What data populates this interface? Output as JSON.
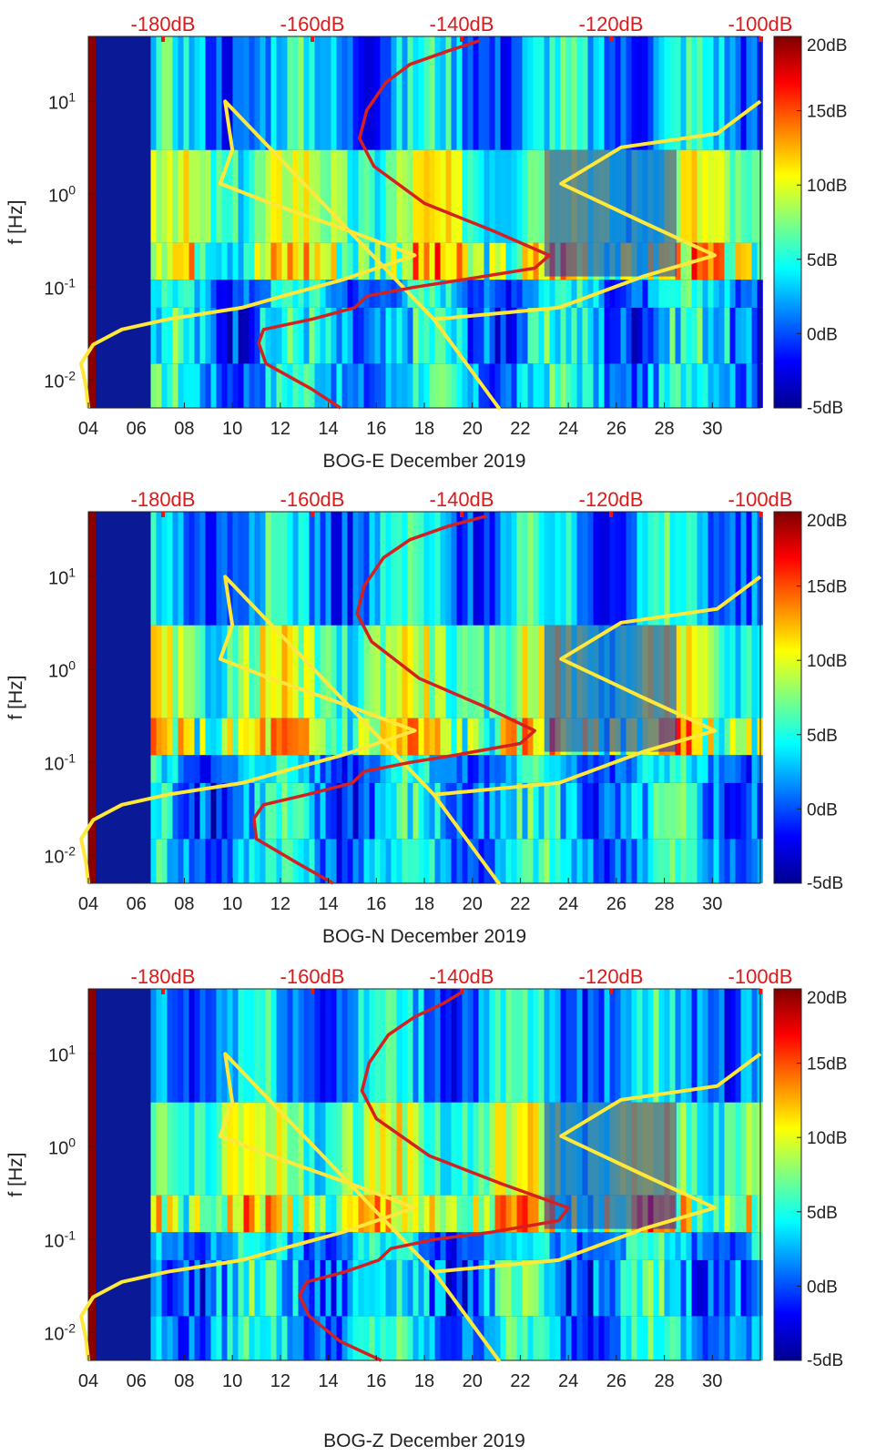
{
  "colors": {
    "background": "#ffffff",
    "spectrogram_blue": "#0a1a96",
    "nlnm_line": "#ffe83a",
    "psd_line": "#d42020",
    "top_axis_text": "#e01818",
    "axis_text": "#222222"
  },
  "chart_data": [
    {
      "type": "heatmap",
      "title": "",
      "xlabel": "BOG-E December 2019",
      "ylabel": "f [Hz]",
      "x_ticks": [
        "04",
        "06",
        "08",
        "10",
        "12",
        "14",
        "16",
        "18",
        "20",
        "22",
        "24",
        "26",
        "28",
        "30"
      ],
      "y_ticks": [
        "10-2",
        "10-1",
        "100",
        "101"
      ],
      "top_ticks": [
        "-180dB",
        "-160dB",
        "-140dB",
        "-120dB",
        "-100dB"
      ],
      "colorbar": {
        "ticks": [
          "20dB",
          "15dB",
          "10dB",
          "5dB",
          "0dB",
          "-5dB"
        ],
        "range": [
          -5,
          20
        ],
        "colormap": "jet"
      },
      "xlim": [
        4,
        32
      ],
      "ylim": [
        0.005,
        50
      ],
      "y_scale": "log",
      "top_xlim": [
        -190,
        -100
      ],
      "data_start_day": 6.6,
      "series": [
        {
          "color": "yellow",
          "points": [
            [
              4.0,
              0.005
            ],
            [
              3.9,
              0.0085
            ],
            [
              3.7,
              0.015
            ],
            [
              4.2,
              0.024
            ],
            [
              5.4,
              0.035
            ],
            [
              7.3,
              0.045
            ],
            [
              10.4,
              0.06
            ],
            [
              12.1,
              0.08
            ],
            [
              14.6,
              0.12
            ],
            [
              17.6,
              0.22
            ],
            [
              14.9,
              0.4
            ],
            [
              11.6,
              0.8
            ],
            [
              9.5,
              1.3
            ],
            [
              10.0,
              3
            ],
            [
              9.7,
              10
            ],
            [
              18.4,
              0.045
            ],
            [
              21.1,
              0.005
            ],
            [
              18.4,
              0.045
            ],
            [
              23.6,
              0.06
            ],
            [
              27.1,
              0.13
            ],
            [
              30.1,
              0.22
            ],
            [
              27.1,
              0.5
            ],
            [
              23.7,
              1.3
            ],
            [
              26.2,
              3.2
            ],
            [
              30.2,
              4.5
            ],
            [
              32.0,
              10
            ]
          ]
        },
        {
          "color": "red",
          "points": [
            [
              14.5,
              0.005
            ],
            [
              13.3,
              0.008
            ],
            [
              11.4,
              0.015
            ],
            [
              11.1,
              0.025
            ],
            [
              11.3,
              0.035
            ],
            [
              13.3,
              0.045
            ],
            [
              15.1,
              0.06
            ],
            [
              15.6,
              0.08
            ],
            [
              17.6,
              0.1
            ],
            [
              19.6,
              0.12
            ],
            [
              22.6,
              0.16
            ],
            [
              23.2,
              0.22
            ],
            [
              20.9,
              0.4
            ],
            [
              18.0,
              0.8
            ],
            [
              15.9,
              2
            ],
            [
              15.3,
              4
            ],
            [
              15.6,
              8
            ],
            [
              16.4,
              16
            ],
            [
              17.4,
              25
            ],
            [
              19.0,
              35
            ],
            [
              20.3,
              45
            ]
          ]
        }
      ]
    },
    {
      "type": "heatmap",
      "title": "",
      "xlabel": "BOG-N December 2019",
      "ylabel": "f [Hz]",
      "x_ticks": [
        "04",
        "06",
        "08",
        "10",
        "12",
        "14",
        "16",
        "18",
        "20",
        "22",
        "24",
        "26",
        "28",
        "30"
      ],
      "y_ticks": [
        "10-2",
        "10-1",
        "100",
        "101"
      ],
      "top_ticks": [
        "-180dB",
        "-160dB",
        "-140dB",
        "-120dB",
        "-100dB"
      ],
      "colorbar": {
        "ticks": [
          "20dB",
          "15dB",
          "10dB",
          "5dB",
          "0dB",
          "-5dB"
        ],
        "range": [
          -5,
          20
        ],
        "colormap": "jet"
      },
      "xlim": [
        4,
        32
      ],
      "ylim": [
        0.005,
        50
      ],
      "y_scale": "log",
      "top_xlim": [
        -190,
        -100
      ],
      "data_start_day": 6.6,
      "series": [
        {
          "color": "yellow",
          "points": [
            [
              4.0,
              0.005
            ],
            [
              3.9,
              0.0085
            ],
            [
              3.7,
              0.015
            ],
            [
              4.2,
              0.024
            ],
            [
              5.4,
              0.035
            ],
            [
              7.3,
              0.045
            ],
            [
              10.4,
              0.06
            ],
            [
              12.1,
              0.08
            ],
            [
              14.6,
              0.12
            ],
            [
              17.6,
              0.22
            ],
            [
              14.9,
              0.4
            ],
            [
              11.6,
              0.8
            ],
            [
              9.5,
              1.3
            ],
            [
              10.0,
              3
            ],
            [
              9.7,
              10
            ],
            [
              18.4,
              0.045
            ],
            [
              21.1,
              0.005
            ],
            [
              18.4,
              0.045
            ],
            [
              23.6,
              0.06
            ],
            [
              27.1,
              0.13
            ],
            [
              30.1,
              0.22
            ],
            [
              27.1,
              0.5
            ],
            [
              23.7,
              1.3
            ],
            [
              26.2,
              3.2
            ],
            [
              30.2,
              4.5
            ],
            [
              32.0,
              10
            ]
          ]
        },
        {
          "color": "red",
          "points": [
            [
              14.2,
              0.005
            ],
            [
              12.8,
              0.008
            ],
            [
              11.0,
              0.015
            ],
            [
              10.9,
              0.025
            ],
            [
              11.3,
              0.035
            ],
            [
              13.1,
              0.045
            ],
            [
              15.0,
              0.06
            ],
            [
              15.5,
              0.08
            ],
            [
              17.4,
              0.1
            ],
            [
              19.3,
              0.12
            ],
            [
              22.0,
              0.16
            ],
            [
              22.6,
              0.22
            ],
            [
              20.5,
              0.4
            ],
            [
              17.8,
              0.8
            ],
            [
              15.8,
              2
            ],
            [
              15.2,
              4
            ],
            [
              15.5,
              8
            ],
            [
              16.3,
              16
            ],
            [
              17.4,
              25
            ],
            [
              19.0,
              35
            ],
            [
              20.6,
              45
            ]
          ]
        }
      ]
    },
    {
      "type": "heatmap",
      "title": "",
      "xlabel": "BOG-Z December 2019",
      "ylabel": "f [Hz]",
      "x_ticks": [
        "04",
        "06",
        "08",
        "10",
        "12",
        "14",
        "16",
        "18",
        "20",
        "22",
        "24",
        "26",
        "28",
        "30"
      ],
      "y_ticks": [
        "10-2",
        "10-1",
        "100",
        "101"
      ],
      "top_ticks": [
        "-180dB",
        "-160dB",
        "-140dB",
        "-120dB",
        "-100dB"
      ],
      "colorbar": {
        "ticks": [
          "20dB",
          "15dB",
          "10dB",
          "5dB",
          "0dB",
          "-5dB"
        ],
        "range": [
          -5,
          20
        ],
        "colormap": "jet"
      },
      "xlim": [
        4,
        32
      ],
      "ylim": [
        0.005,
        50
      ],
      "y_scale": "log",
      "top_xlim": [
        -190,
        -100
      ],
      "data_start_day": 6.6,
      "series": [
        {
          "color": "yellow",
          "points": [
            [
              4.0,
              0.005
            ],
            [
              3.9,
              0.0085
            ],
            [
              3.7,
              0.015
            ],
            [
              4.2,
              0.024
            ],
            [
              5.4,
              0.035
            ],
            [
              7.3,
              0.045
            ],
            [
              10.4,
              0.06
            ],
            [
              12.1,
              0.08
            ],
            [
              14.6,
              0.12
            ],
            [
              17.6,
              0.22
            ],
            [
              14.9,
              0.4
            ],
            [
              11.6,
              0.8
            ],
            [
              9.5,
              1.3
            ],
            [
              10.0,
              3
            ],
            [
              9.7,
              10
            ],
            [
              18.4,
              0.045
            ],
            [
              21.1,
              0.005
            ],
            [
              18.4,
              0.045
            ],
            [
              23.6,
              0.06
            ],
            [
              27.1,
              0.13
            ],
            [
              30.1,
              0.22
            ],
            [
              27.1,
              0.5
            ],
            [
              23.7,
              1.3
            ],
            [
              26.2,
              3.2
            ],
            [
              30.2,
              4.5
            ],
            [
              32.0,
              10
            ]
          ]
        },
        {
          "color": "red",
          "points": [
            [
              16.2,
              0.005
            ],
            [
              14.5,
              0.008
            ],
            [
              13.2,
              0.015
            ],
            [
              12.8,
              0.025
            ],
            [
              13.1,
              0.035
            ],
            [
              14.7,
              0.045
            ],
            [
              16.1,
              0.06
            ],
            [
              16.6,
              0.08
            ],
            [
              18.4,
              0.1
            ],
            [
              20.8,
              0.12
            ],
            [
              23.6,
              0.16
            ],
            [
              24.0,
              0.22
            ],
            [
              21.2,
              0.4
            ],
            [
              18.2,
              0.8
            ],
            [
              16.0,
              2
            ],
            [
              15.4,
              4
            ],
            [
              15.7,
              8
            ],
            [
              16.5,
              16
            ],
            [
              17.6,
              25
            ],
            [
              18.8,
              35
            ],
            [
              19.5,
              45
            ]
          ]
        }
      ]
    }
  ]
}
